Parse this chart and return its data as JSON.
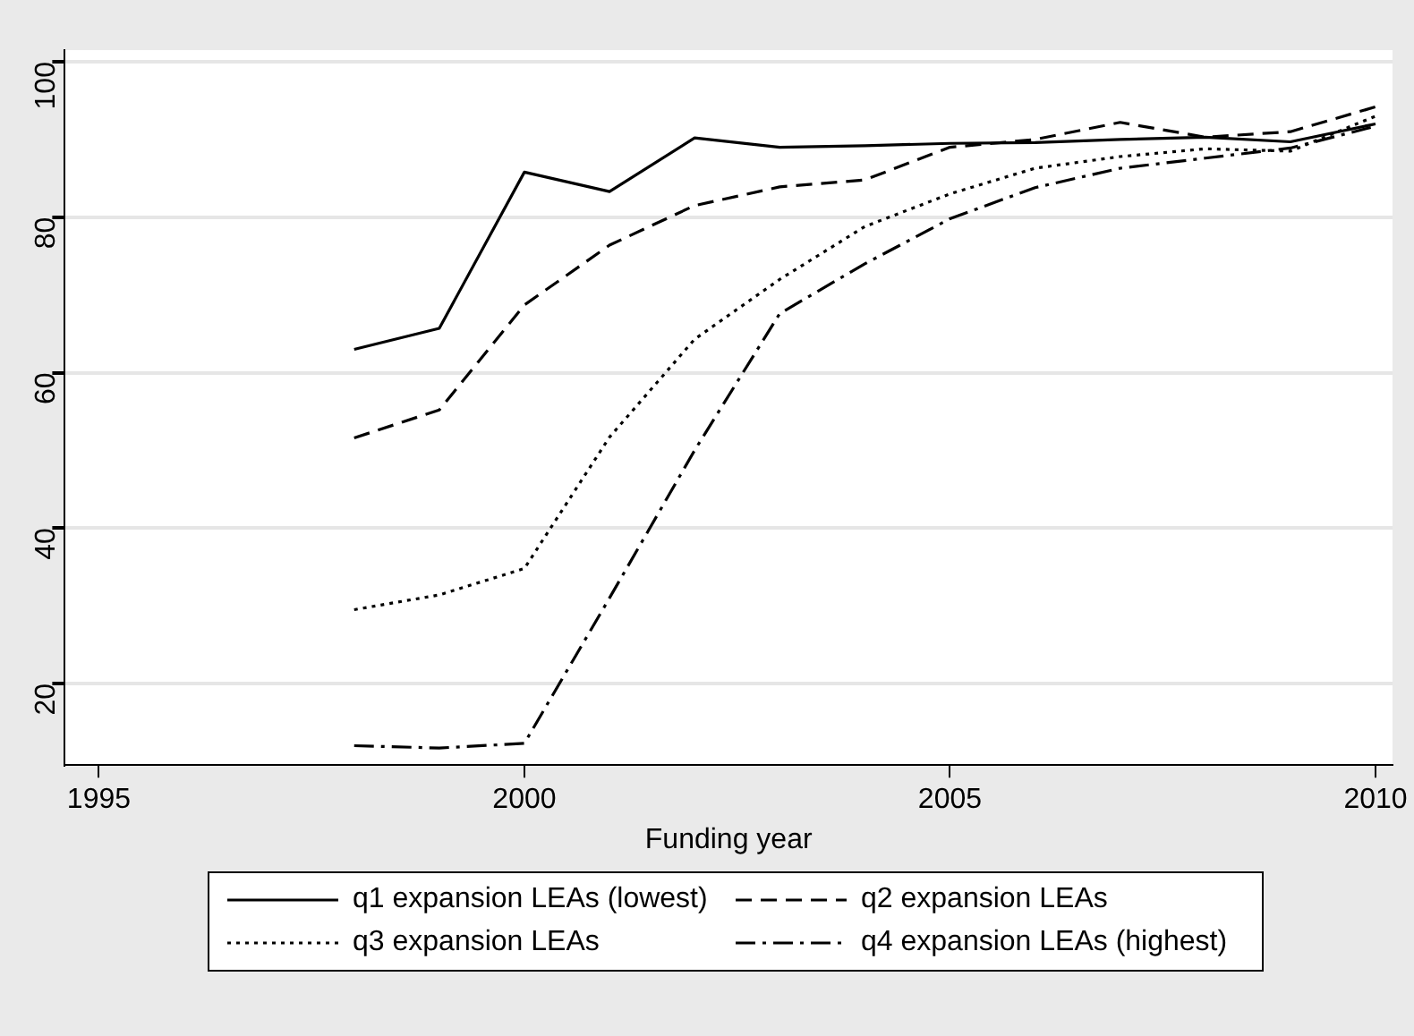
{
  "chart_data": {
    "type": "line",
    "xlabel": "Funding year",
    "x": [
      1998,
      1999,
      2000,
      2001,
      2002,
      2003,
      2004,
      2005,
      2006,
      2007,
      2008,
      2009,
      2010
    ],
    "series": [
      {
        "name": "q1 expansion LEAs (lowest)",
        "color": "#000000",
        "line_style": "solid",
        "values": [
          63,
          65.7,
          85.8,
          83.3,
          90.2,
          89,
          89.2,
          89.5,
          89.6,
          90,
          90.3,
          89.7,
          92
        ]
      },
      {
        "name": "q2 expansion LEAs",
        "color": "#000000",
        "line_style": "dashed",
        "values": [
          51.6,
          55.2,
          68.7,
          76.4,
          81.5,
          83.9,
          84.8,
          89,
          90,
          92.2,
          90.3,
          91,
          94.2
        ]
      },
      {
        "name": "q3 expansion LEAs",
        "color": "#000000",
        "line_style": "dotted",
        "values": [
          29.5,
          31.4,
          34.8,
          51.7,
          64.3,
          72,
          78.8,
          83,
          86.3,
          87.8,
          88.8,
          88.5,
          93
        ]
      },
      {
        "name": "q4 expansion LEAs (highest)",
        "color": "#000000",
        "line_style": "dashdot",
        "values": [
          12,
          11.7,
          12.3,
          31,
          50,
          67.6,
          74,
          79.8,
          83.8,
          86.3,
          87.6,
          88.9,
          91.7
        ]
      }
    ],
    "xlim": [
      1994.6,
      2010.2
    ],
    "xticks": [
      1995,
      2000,
      2005,
      2010
    ],
    "ylim": [
      9.5,
      101.5
    ],
    "yticks": [
      20,
      40,
      60,
      80,
      100
    ],
    "grid": "y",
    "legend": "bottom",
    "marker": "none"
  }
}
